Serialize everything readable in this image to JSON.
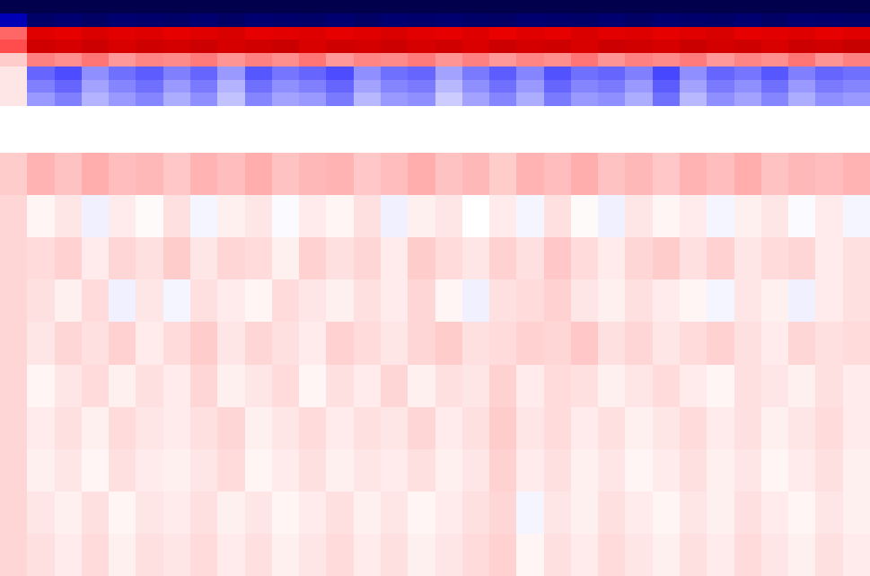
{
  "chart_data": [
    {
      "type": "heatmap",
      "tick_labels": false,
      "zlim": [
        -1,
        1
      ],
      "cells": [
        [
          -1,
          -1,
          -1,
          -1,
          -1,
          -1,
          -1,
          -1,
          -1,
          -1,
          -1,
          -1,
          -1,
          -1,
          -1,
          -1,
          -1,
          -1,
          -1,
          -1,
          -1,
          -1,
          -1,
          -1,
          -1,
          -1,
          -1,
          -1,
          -1,
          -1,
          -1,
          -1
        ],
        [
          -0.7,
          -0.92,
          -0.9,
          -0.93,
          -0.9,
          -0.91,
          -0.92,
          -0.9,
          -0.93,
          -0.9,
          -0.91,
          -0.92,
          -0.9,
          -0.93,
          -0.9,
          -0.91,
          -0.9,
          -0.92,
          -0.93,
          -0.9,
          -0.91,
          -0.92,
          -0.9,
          -0.93,
          -0.9,
          -0.91,
          -0.92,
          -0.9,
          -0.93,
          -0.9,
          -0.91,
          -0.92
        ],
        [
          0.3,
          0.62,
          0.6,
          0.64,
          0.61,
          0.63,
          0.6,
          0.62,
          0.65,
          0.6,
          0.61,
          0.63,
          0.6,
          0.62,
          0.64,
          0.61,
          0.6,
          0.63,
          0.58,
          0.62,
          0.6,
          0.64,
          0.61,
          0.63,
          0.6,
          0.62,
          0.65,
          0.6,
          0.61,
          0.63,
          0.6,
          0.62
        ],
        [
          0.35,
          0.68,
          0.66,
          0.7,
          0.65,
          0.69,
          0.67,
          0.7,
          0.66,
          0.68,
          0.71,
          0.65,
          0.69,
          0.67,
          0.7,
          0.66,
          0.68,
          0.64,
          0.7,
          0.67,
          0.69,
          0.65,
          0.7,
          0.68,
          0.66,
          0.71,
          0.67,
          0.69,
          0.65,
          0.7,
          0.68,
          0.72
        ],
        [
          0.1,
          0.25,
          0.22,
          0.27,
          0.2,
          0.24,
          0.23,
          0.26,
          0.21,
          0.25,
          0.22,
          0.27,
          0.2,
          0.24,
          0.23,
          0.26,
          0.21,
          0.25,
          0.2,
          0.24,
          0.22,
          0.27,
          0.21,
          0.25,
          0.23,
          0.26,
          0.2,
          0.24,
          0.22,
          0.27,
          0.21,
          0.25
        ],
        [
          0.05,
          -0.3,
          -0.35,
          -0.22,
          -0.28,
          -0.32,
          -0.25,
          -0.3,
          -0.2,
          -0.33,
          -0.27,
          -0.3,
          -0.35,
          -0.22,
          -0.28,
          -0.3,
          -0.18,
          -0.26,
          -0.32,
          -0.24,
          -0.34,
          -0.28,
          -0.3,
          -0.25,
          -0.36,
          -0.22,
          -0.3,
          -0.27,
          -0.33,
          -0.25,
          -0.3,
          -0.28
        ],
        [
          0.05,
          -0.25,
          -0.3,
          -0.18,
          -0.24,
          -0.28,
          -0.2,
          -0.26,
          -0.15,
          -0.28,
          -0.22,
          -0.25,
          -0.3,
          -0.18,
          -0.24,
          -0.26,
          -0.14,
          -0.22,
          -0.28,
          -0.2,
          -0.3,
          -0.24,
          -0.26,
          -0.2,
          -0.32,
          -0.18,
          -0.26,
          -0.22,
          -0.28,
          -0.2,
          -0.26,
          -0.24
        ],
        [
          0.05,
          -0.2,
          -0.25,
          -0.15,
          -0.2,
          -0.24,
          -0.16,
          -0.22,
          -0.12,
          -0.24,
          -0.18,
          -0.2,
          -0.26,
          -0.14,
          -0.2,
          -0.22,
          -0.1,
          -0.18,
          -0.24,
          -0.16,
          -0.26,
          -0.2,
          -0.22,
          -0.16,
          -0.28,
          -0.14,
          -0.22,
          -0.18,
          -0.24,
          -0.16,
          -0.22,
          -0.2
        ]
      ]
    },
    {
      "type": "heatmap",
      "tick_labels": false,
      "zlim": [
        -1,
        1
      ],
      "cells": [
        [
          0.1,
          0.15,
          0.12,
          0.16,
          0.13,
          0.14,
          0.11,
          0.15,
          0.13,
          0.16,
          0.12,
          0.14,
          0.15,
          0.11,
          0.13,
          0.16,
          0.12,
          0.14,
          0.1,
          0.15,
          0.13,
          0.16,
          0.12,
          0.14,
          0.11,
          0.15,
          0.13,
          0.16,
          0.12,
          0.14,
          0.13,
          0.15
        ],
        [
          0.08,
          0.02,
          0.05,
          -0.03,
          0.04,
          0.01,
          0.06,
          -0.02,
          0.03,
          0.05,
          -0.01,
          0.04,
          0.02,
          0.06,
          -0.03,
          0.03,
          0.05,
          0.0,
          0.04,
          -0.02,
          0.06,
          0.01,
          -0.03,
          0.05,
          0.02,
          0.04,
          -0.02,
          0.03,
          0.05,
          -0.01,
          0.04,
          -0.02
        ],
        [
          0.08,
          0.07,
          0.09,
          0.04,
          0.08,
          0.06,
          0.1,
          0.05,
          0.08,
          0.07,
          0.03,
          0.09,
          0.06,
          0.08,
          0.04,
          0.1,
          0.07,
          0.05,
          0.09,
          0.06,
          0.11,
          0.07,
          0.04,
          0.08,
          0.1,
          0.06,
          0.09,
          0.05,
          0.07,
          0.08,
          0.04,
          0.06
        ],
        [
          0.08,
          0.06,
          0.03,
          0.07,
          -0.03,
          0.05,
          -0.02,
          0.06,
          0.04,
          0.02,
          0.07,
          0.05,
          0.03,
          0.06,
          0.04,
          0.08,
          0.02,
          -0.03,
          0.06,
          0.07,
          0.09,
          0.05,
          0.03,
          0.06,
          0.04,
          0.02,
          -0.02,
          0.05,
          0.03,
          -0.03,
          0.04,
          0.06
        ],
        [
          0.08,
          0.05,
          0.08,
          0.06,
          0.09,
          0.04,
          0.07,
          0.1,
          0.05,
          0.08,
          0.06,
          0.04,
          0.09,
          0.07,
          0.05,
          0.08,
          0.1,
          0.06,
          0.07,
          0.09,
          0.08,
          0.11,
          0.06,
          0.08,
          0.05,
          0.07,
          0.09,
          0.06,
          0.04,
          0.08,
          0.06,
          0.07
        ],
        [
          0.08,
          0.02,
          0.05,
          0.07,
          0.03,
          0.06,
          0.04,
          0.08,
          0.03,
          0.05,
          0.07,
          0.02,
          0.06,
          0.04,
          0.08,
          0.03,
          0.06,
          0.05,
          0.09,
          0.04,
          0.07,
          0.06,
          0.03,
          0.05,
          0.07,
          0.04,
          0.02,
          0.06,
          0.05,
          0.03,
          0.06,
          0.04
        ],
        [
          0.08,
          0.04,
          0.06,
          0.03,
          0.07,
          0.05,
          0.04,
          0.06,
          0.08,
          0.03,
          0.05,
          0.07,
          0.04,
          0.06,
          0.05,
          0.08,
          0.04,
          0.06,
          0.1,
          0.05,
          0.07,
          0.04,
          0.06,
          0.03,
          0.05,
          0.07,
          0.04,
          0.06,
          0.03,
          0.05,
          0.07,
          0.04
        ],
        [
          0.08,
          0.03,
          0.05,
          0.02,
          0.06,
          0.04,
          0.03,
          0.05,
          0.07,
          0.02,
          0.04,
          0.06,
          0.03,
          0.05,
          0.04,
          0.06,
          0.03,
          0.05,
          0.09,
          0.04,
          0.06,
          0.03,
          0.05,
          0.02,
          0.04,
          0.06,
          0.03,
          0.05,
          0.02,
          0.04,
          0.06,
          0.03
        ],
        [
          0.08,
          0.05,
          0.03,
          0.06,
          0.02,
          0.05,
          0.04,
          0.06,
          0.03,
          0.05,
          0.02,
          0.04,
          0.06,
          0.03,
          0.05,
          0.02,
          0.04,
          0.06,
          0.08,
          -0.02,
          0.05,
          0.03,
          0.06,
          0.04,
          0.02,
          0.05,
          0.03,
          0.06,
          0.04,
          0.02,
          0.05,
          0.03
        ],
        [
          0.08,
          0.06,
          0.04,
          0.07,
          0.03,
          0.06,
          0.05,
          0.07,
          0.04,
          0.06,
          0.03,
          0.05,
          0.07,
          0.04,
          0.06,
          0.03,
          0.05,
          0.07,
          0.09,
          0.02,
          0.06,
          0.04,
          0.07,
          0.05,
          0.03,
          0.06,
          0.04,
          0.07,
          0.05,
          0.03,
          0.06,
          0.04
        ]
      ]
    }
  ]
}
